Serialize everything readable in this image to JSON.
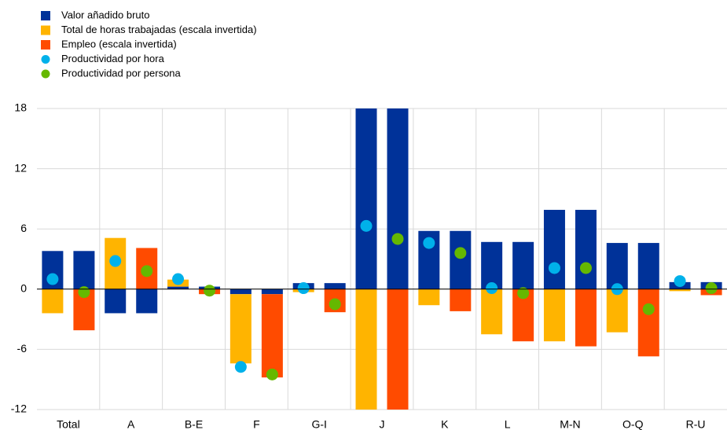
{
  "chart_data": {
    "type": "bar",
    "categories": [
      "Total",
      "A",
      "B-E",
      "F",
      "G-I",
      "J",
      "K",
      "L",
      "M-N",
      "O-Q",
      "R-U"
    ],
    "series": [
      {
        "name": "Valor añadido bruto",
        "color": "#003299",
        "type": "bar",
        "values": [
          3.8,
          -2.4,
          0.25,
          -0.5,
          0.6,
          20,
          5.8,
          4.7,
          7.9,
          4.6,
          0.7
        ]
      },
      {
        "name": "Total de horas trabajadas (escala invertida)",
        "color": "#ffb400",
        "type": "bar",
        "values": [
          -2.4,
          5.1,
          0.7,
          -6.9,
          -0.3,
          -13,
          -1.6,
          -4.5,
          -5.2,
          -4.3,
          -0.2
        ]
      },
      {
        "name": "Empleo (escala invertida)",
        "color": "#ff4b00",
        "type": "bar",
        "values": [
          -4.1,
          4.1,
          -0.5,
          -8.3,
          -2.3,
          -13,
          -2.2,
          -5.2,
          -5.7,
          -6.7,
          -0.6
        ]
      },
      {
        "name": "Productividad por hora",
        "color": "#00b1ea",
        "type": "scatter",
        "values": [
          1.0,
          2.8,
          1.0,
          -7.75,
          0.1,
          6.3,
          4.6,
          0.1,
          2.1,
          0.0,
          0.8
        ]
      },
      {
        "name": "Productividad por persona",
        "color": "#65b800",
        "type": "scatter",
        "values": [
          -0.3,
          1.8,
          -0.15,
          -8.5,
          -1.5,
          5.0,
          3.6,
          -0.4,
          2.1,
          -2.0,
          0.1
        ]
      }
    ],
    "ylim": [
      -12,
      18
    ],
    "yticks": [
      18,
      12,
      6,
      0,
      -6,
      -12
    ],
    "grid": true,
    "legend": "top-left"
  }
}
